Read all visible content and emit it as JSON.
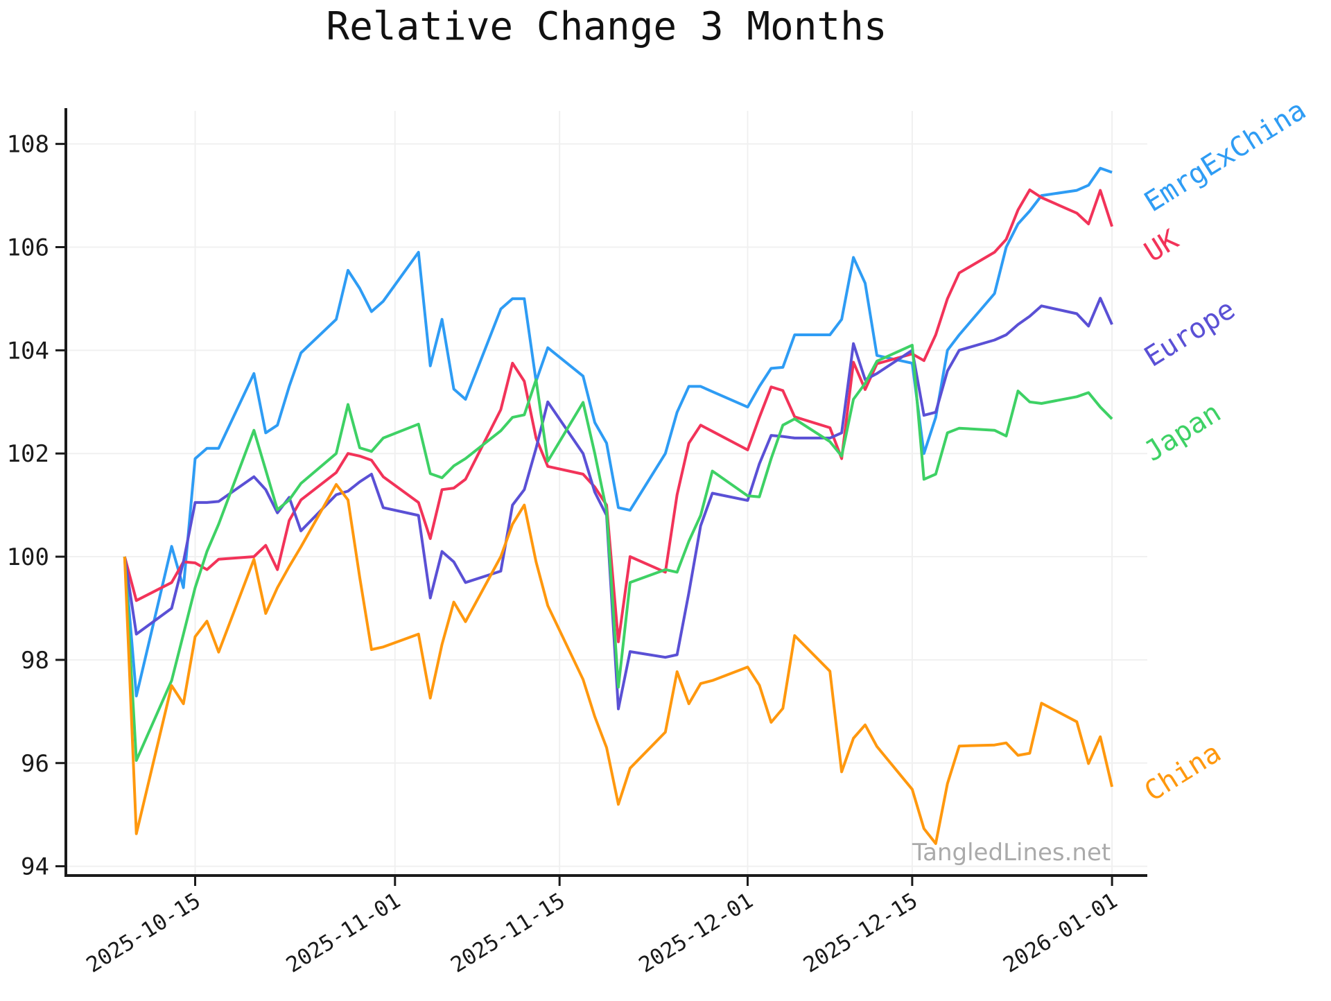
{
  "title": "Relative Change 3 Months",
  "watermark": "TangledLines.net",
  "colors": {
    "EmrgExChina": "#2E9CF4",
    "UK": "#F23359",
    "Europe": "#5A50D5",
    "Japan": "#3ED165",
    "China": "#FF980E",
    "grid": "#F0F0F0",
    "axis": "#1A1A1A",
    "watermark": "#AAAAAA"
  },
  "chart_data": {
    "type": "line",
    "title": "Relative Change 3 Months",
    "xlabel": "",
    "ylabel": "",
    "grid": true,
    "legend_position": "right-edge-rotated-labels",
    "ylim": [
      93.82,
      108.64
    ],
    "xlim": [
      "2025-10-04",
      "2026-01-04"
    ],
    "yticks": [
      94,
      96,
      98,
      100,
      102,
      104,
      106,
      108
    ],
    "xticks": [
      "2025-10-15",
      "2025-11-01",
      "2025-11-15",
      "2025-12-01",
      "2025-12-15",
      "2026-01-01"
    ],
    "x": [
      "2025-10-09",
      "2025-10-10",
      "2025-10-13",
      "2025-10-14",
      "2025-10-15",
      "2025-10-16",
      "2025-10-17",
      "2025-10-20",
      "2025-10-21",
      "2025-10-22",
      "2025-10-23",
      "2025-10-24",
      "2025-10-27",
      "2025-10-28",
      "2025-10-29",
      "2025-10-30",
      "2025-10-31",
      "2025-11-03",
      "2025-11-04",
      "2025-11-05",
      "2025-11-06",
      "2025-11-07",
      "2025-11-10",
      "2025-11-11",
      "2025-11-12",
      "2025-11-13",
      "2025-11-14",
      "2025-11-17",
      "2025-11-18",
      "2025-11-19",
      "2025-11-20",
      "2025-11-21",
      "2025-11-24",
      "2025-11-25",
      "2025-11-26",
      "2025-11-27",
      "2025-11-28",
      "2025-12-01",
      "2025-12-02",
      "2025-12-03",
      "2025-12-04",
      "2025-12-05",
      "2025-12-08",
      "2025-12-09",
      "2025-12-10",
      "2025-12-11",
      "2025-12-12",
      "2025-12-15",
      "2025-12-16",
      "2025-12-17",
      "2025-12-18",
      "2025-12-19",
      "2025-12-22",
      "2025-12-23",
      "2025-12-24",
      "2025-12-25",
      "2025-12-26",
      "2025-12-29",
      "2025-12-30",
      "2025-12-31",
      "2026-01-01"
    ],
    "series": [
      {
        "name": "EmrgExChina",
        "color": "#2E9CF4",
        "values": [
          100.0,
          97.3,
          100.2,
          99.4,
          101.9,
          102.1,
          102.1,
          103.55,
          102.4,
          102.55,
          103.3,
          103.95,
          104.6,
          105.55,
          105.2,
          104.75,
          104.95,
          105.9,
          103.7,
          104.6,
          103.25,
          103.05,
          104.8,
          105.0,
          105.0,
          103.4,
          104.05,
          103.5,
          102.6,
          102.2,
          100.95,
          100.9,
          102.0,
          102.8,
          103.3,
          103.3,
          103.2,
          102.9,
          103.3,
          103.65,
          103.67,
          104.3,
          104.3,
          104.6,
          105.8,
          105.3,
          103.9,
          103.75,
          102.0,
          102.7,
          104.0,
          104.3,
          105.1,
          106.0,
          106.45,
          106.7,
          107.0,
          107.1,
          107.2,
          107.53,
          107.45
        ]
      },
      {
        "name": "UK",
        "color": "#F23359",
        "values": [
          100.0,
          99.15,
          99.5,
          99.9,
          99.88,
          99.75,
          99.95,
          100.0,
          100.22,
          99.75,
          100.7,
          101.1,
          101.63,
          102.0,
          101.95,
          101.87,
          101.55,
          101.05,
          100.35,
          101.3,
          101.33,
          101.5,
          102.85,
          103.75,
          103.4,
          102.3,
          101.75,
          101.6,
          101.35,
          101.0,
          98.35,
          100.0,
          99.7,
          101.2,
          102.2,
          102.55,
          102.43,
          102.07,
          102.7,
          103.29,
          103.22,
          102.71,
          102.5,
          101.9,
          103.77,
          103.24,
          103.74,
          103.93,
          103.8,
          104.3,
          105.0,
          105.5,
          105.9,
          106.15,
          106.72,
          107.11,
          106.96,
          106.66,
          106.45,
          107.1,
          106.4
        ]
      },
      {
        "name": "Europe",
        "color": "#5A50D5",
        "values": [
          100.0,
          98.5,
          99.0,
          99.9,
          101.05,
          101.05,
          101.07,
          101.55,
          101.3,
          100.85,
          101.15,
          100.5,
          101.2,
          101.27,
          101.45,
          101.6,
          100.95,
          100.8,
          99.2,
          100.1,
          99.9,
          99.5,
          99.72,
          101.0,
          101.3,
          102.1,
          103.0,
          102.0,
          101.25,
          100.8,
          97.05,
          98.16,
          98.05,
          98.1,
          99.3,
          100.6,
          101.23,
          101.09,
          101.8,
          102.35,
          102.33,
          102.3,
          102.3,
          102.4,
          104.13,
          103.43,
          103.55,
          104.0,
          102.74,
          102.8,
          103.6,
          104.0,
          104.2,
          104.3,
          104.5,
          104.66,
          104.86,
          104.71,
          104.47,
          105.01,
          104.5
        ]
      },
      {
        "name": "Japan",
        "color": "#3ED165",
        "values": [
          100.0,
          96.05,
          97.6,
          98.5,
          99.4,
          100.1,
          100.63,
          102.45,
          101.68,
          100.91,
          101.1,
          101.42,
          102.0,
          102.95,
          102.11,
          102.04,
          102.3,
          102.57,
          101.61,
          101.53,
          101.76,
          101.9,
          102.44,
          102.7,
          102.75,
          103.43,
          101.85,
          102.99,
          102.0,
          100.9,
          97.47,
          99.5,
          99.75,
          99.7,
          100.3,
          100.8,
          101.66,
          101.18,
          101.16,
          101.9,
          102.55,
          102.67,
          102.23,
          101.95,
          103.05,
          103.36,
          103.79,
          104.1,
          101.5,
          101.6,
          102.4,
          102.49,
          102.45,
          102.34,
          103.21,
          103.0,
          102.97,
          103.1,
          103.18,
          102.9,
          102.67
        ]
      },
      {
        "name": "China",
        "color": "#FF980E",
        "values": [
          100.0,
          94.63,
          97.5,
          97.15,
          98.45,
          98.75,
          98.15,
          99.95,
          98.9,
          99.4,
          99.81,
          100.19,
          101.4,
          101.1,
          99.6,
          98.2,
          98.25,
          98.5,
          97.26,
          98.3,
          99.12,
          98.74,
          100.0,
          100.63,
          101.0,
          99.9,
          99.05,
          97.62,
          96.9,
          96.3,
          95.2,
          95.9,
          96.6,
          97.77,
          97.15,
          97.54,
          97.6,
          97.86,
          97.51,
          96.79,
          97.06,
          98.47,
          97.78,
          95.83,
          96.48,
          96.74,
          96.32,
          95.49,
          94.73,
          94.44,
          95.6,
          96.33,
          96.35,
          96.39,
          96.15,
          96.19,
          97.16,
          96.8,
          95.99,
          96.51,
          95.54
        ]
      }
    ]
  }
}
